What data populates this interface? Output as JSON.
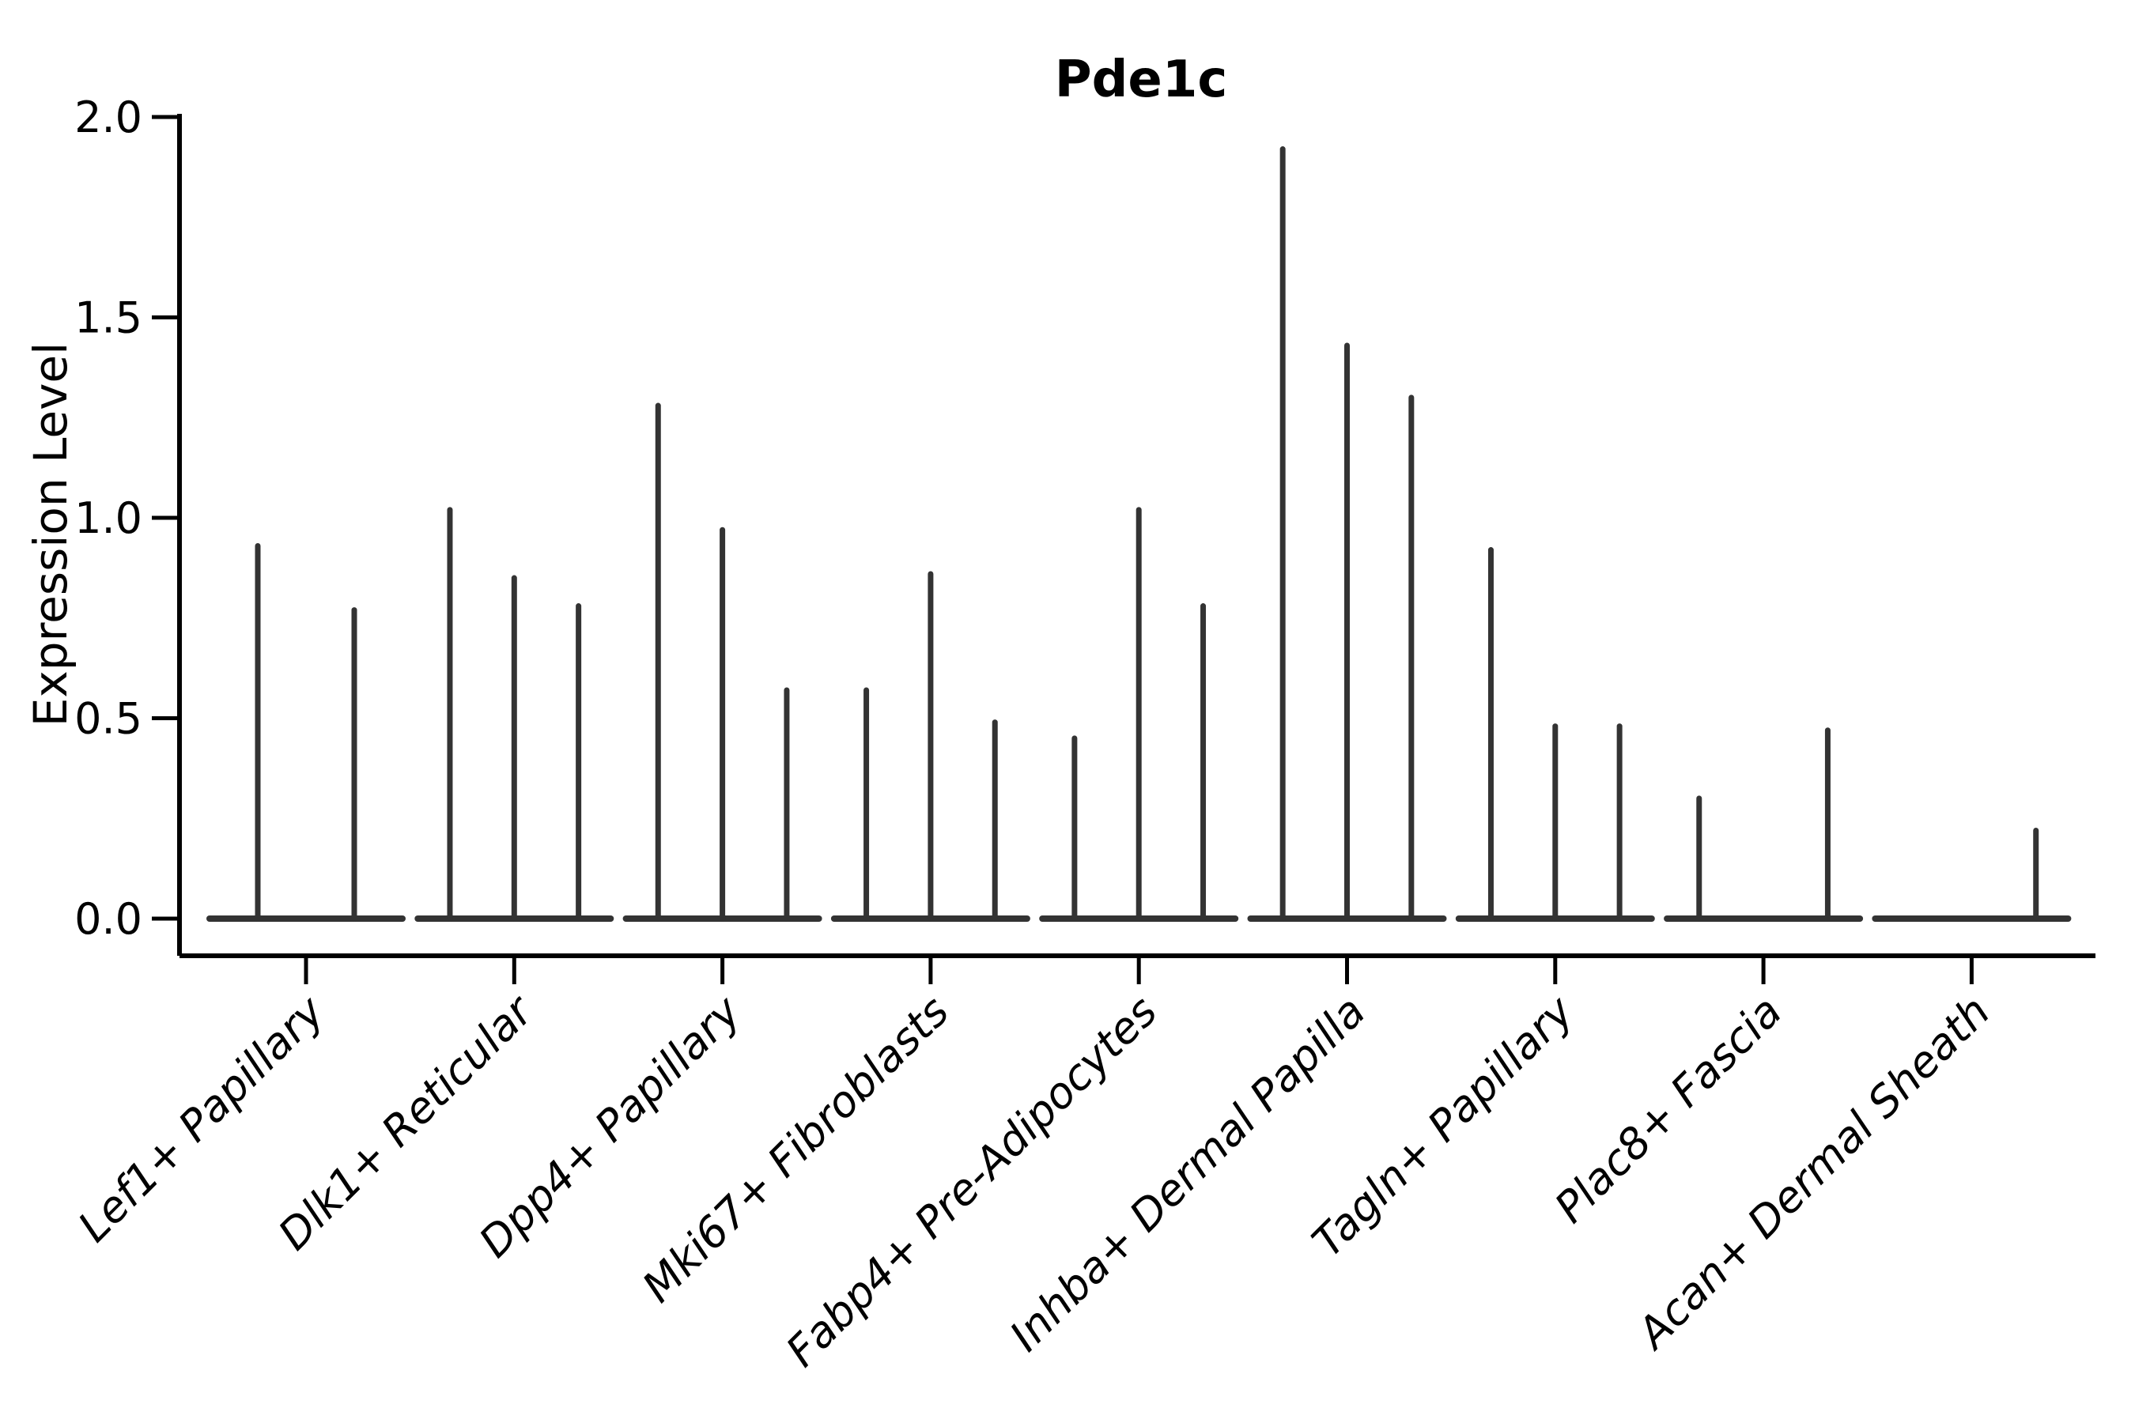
{
  "figure": {
    "background_color": "#ffffff",
    "axis_color": "#000000",
    "violin_color": "#333333"
  },
  "chart_data": {
    "type": "violin",
    "title": "Pde1c",
    "xlabel": "",
    "ylabel": "Expression Level",
    "ylim": [
      0.0,
      2.0
    ],
    "grid": false,
    "legend": "none",
    "y_tick_values": [
      0.0,
      0.5,
      1.0,
      1.5,
      2.0
    ],
    "y_tick_labels": [
      "0.0",
      "0.5",
      "1.0",
      "1.5",
      "2.0"
    ],
    "categories": [
      "Lef1+ Papillary",
      "Dlk1+ Reticular",
      "Dpp4+ Papillary",
      "Mki67+ Fibroblasts",
      "Fabp4+ Pre-Adipocytes",
      "Inhba+ Dermal Papilla",
      "Tagln+ Papillary",
      "Plac8+ Fascia",
      "Acan+ Dermal Sheath"
    ],
    "note": "Each category shows extremely narrow violins: a flat base at 0 with thin spikes; spike_maxima lists the peak expression value of each violin within the category (0 = flat violin with no spike).",
    "groups": [
      {
        "category": "Lef1+ Papillary",
        "spike_maxima": [
          0.93,
          0.77
        ]
      },
      {
        "category": "Dlk1+ Reticular",
        "spike_maxima": [
          1.02,
          0.85,
          0.78
        ]
      },
      {
        "category": "Dpp4+ Papillary",
        "spike_maxima": [
          1.28,
          0.97,
          0.57
        ]
      },
      {
        "category": "Mki67+ Fibroblasts",
        "spike_maxima": [
          0.57,
          0.86,
          0.49
        ]
      },
      {
        "category": "Fabp4+ Pre-Adipocytes",
        "spike_maxima": [
          0.45,
          1.02,
          0.78
        ]
      },
      {
        "category": "Inhba+ Dermal Papilla",
        "spike_maxima": [
          1.92,
          1.43,
          1.3
        ]
      },
      {
        "category": "Tagln+ Papillary",
        "spike_maxima": [
          0.92,
          0.48,
          0.48
        ]
      },
      {
        "category": "Plac8+ Fascia",
        "spike_maxima": [
          0.3,
          0,
          0.47
        ]
      },
      {
        "category": "Acan+ Dermal Sheath",
        "spike_maxima": [
          0,
          0,
          0.22
        ]
      }
    ]
  }
}
